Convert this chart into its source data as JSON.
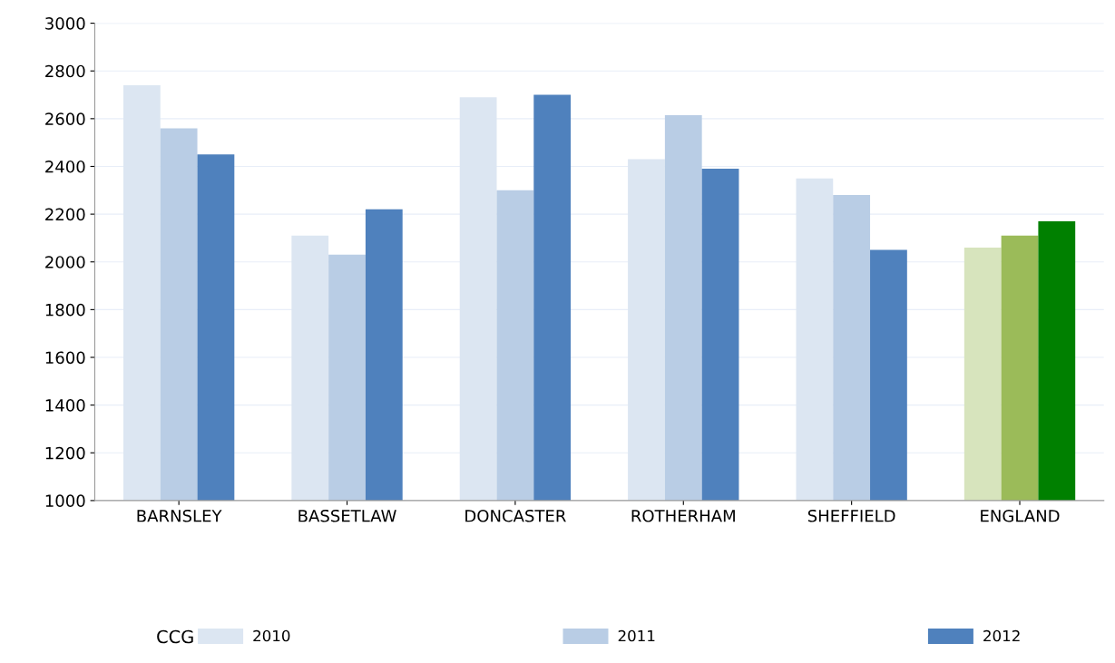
{
  "chart_data": {
    "type": "bar",
    "categories": [
      "BARNSLEY",
      "BASSETLAW",
      "DONCASTER",
      "ROTHERHAM",
      "SHEFFIELD",
      "ENGLAND"
    ],
    "series": [
      {
        "name": "2010",
        "color": "#dce6f2",
        "colors": [
          "#dce6f2",
          "#dce6f2",
          "#dce6f2",
          "#dce6f2",
          "#dce6f2",
          "#d7e4bd"
        ],
        "values": [
          2740,
          2110,
          2690,
          2430,
          2350,
          2060
        ]
      },
      {
        "name": "2011",
        "color": "#b9cde5",
        "colors": [
          "#b9cde5",
          "#b9cde5",
          "#b9cde5",
          "#b9cde5",
          "#b9cde5",
          "#9bbb59"
        ],
        "values": [
          2560,
          2030,
          2300,
          2615,
          2280,
          2110
        ]
      },
      {
        "name": "2012",
        "color": "#4f81bd",
        "colors": [
          "#4f81bd",
          "#4f81bd",
          "#4f81bd",
          "#4f81bd",
          "#4f81bd",
          "#008000"
        ],
        "values": [
          2450,
          2220,
          2700,
          2390,
          2050,
          2170
        ]
      }
    ],
    "ylim": [
      1000,
      3000
    ],
    "yticks": [
      1000,
      1200,
      1400,
      1600,
      1800,
      2000,
      2200,
      2400,
      2600,
      2800,
      3000
    ],
    "grid": "y",
    "legend": "bottom",
    "legend_title": "CCG"
  }
}
